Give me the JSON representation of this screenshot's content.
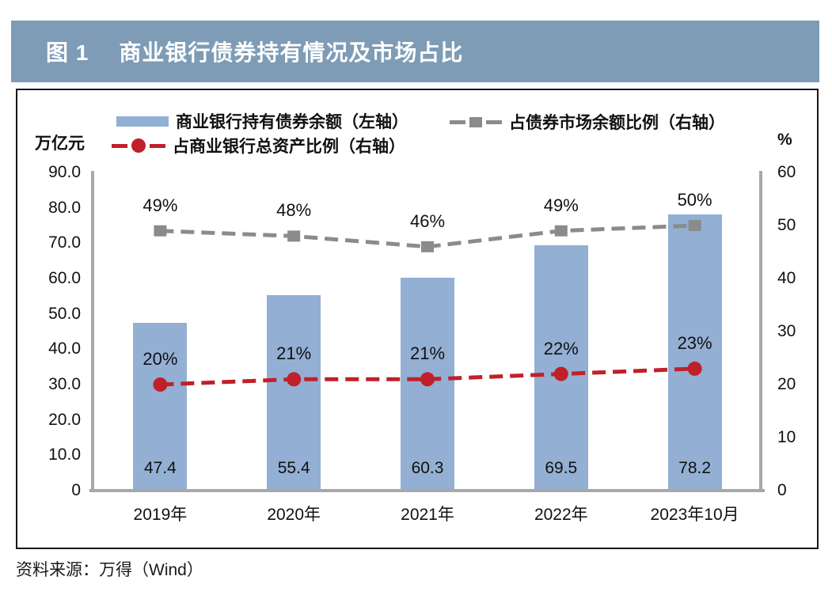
{
  "header": {
    "figure_label": "图 1",
    "title": "商业银行债券持有情况及市场占比"
  },
  "source": {
    "text": "资料来源：万得（Wind）"
  },
  "colors": {
    "header_bg": "#7e9cb6",
    "bar": "#93afd3",
    "gray_line": "#8b8b8b",
    "red_line": "#c0202a",
    "axis": "#a8a8a8"
  },
  "chart_data": {
    "type": "bar",
    "title": "商业银行债券持有情况及市场占比",
    "categories": [
      "2019年",
      "2020年",
      "2021年",
      "2022年",
      "2023年10月"
    ],
    "series": [
      {
        "name": "商业银行持有债券余额（左轴）",
        "type": "bar",
        "axis": "left",
        "color": "#93afd3",
        "values": [
          47.4,
          55.4,
          60.3,
          69.5,
          78.2
        ],
        "labels": [
          "47.4",
          "55.4",
          "60.3",
          "69.5",
          "78.2"
        ]
      },
      {
        "name": "占债券市场余额比例（右轴）",
        "type": "line",
        "axis": "right",
        "color": "#8b8b8b",
        "marker": "square",
        "values": [
          49,
          48,
          46,
          49,
          50
        ],
        "labels": [
          "49%",
          "48%",
          "46%",
          "49%",
          "50%"
        ]
      },
      {
        "name": "占商业银行总资产比例（右轴）",
        "type": "line",
        "axis": "right",
        "color": "#c0202a",
        "marker": "circle",
        "values": [
          20,
          21,
          21,
          22,
          23
        ],
        "labels": [
          "20%",
          "21%",
          "21%",
          "22%",
          "23%"
        ]
      }
    ],
    "left_axis": {
      "unit": "万亿元",
      "min": 0,
      "max": 90,
      "ticks": [
        "90.0",
        "80.0",
        "70.0",
        "60.0",
        "50.0",
        "40.0",
        "30.0",
        "20.0",
        "10.0",
        "0"
      ]
    },
    "right_axis": {
      "unit": "%",
      "min": 0,
      "max": 60,
      "ticks": [
        "60",
        "50",
        "40",
        "30",
        "20",
        "10",
        "0"
      ]
    },
    "legend_position": "top",
    "grid": false
  }
}
